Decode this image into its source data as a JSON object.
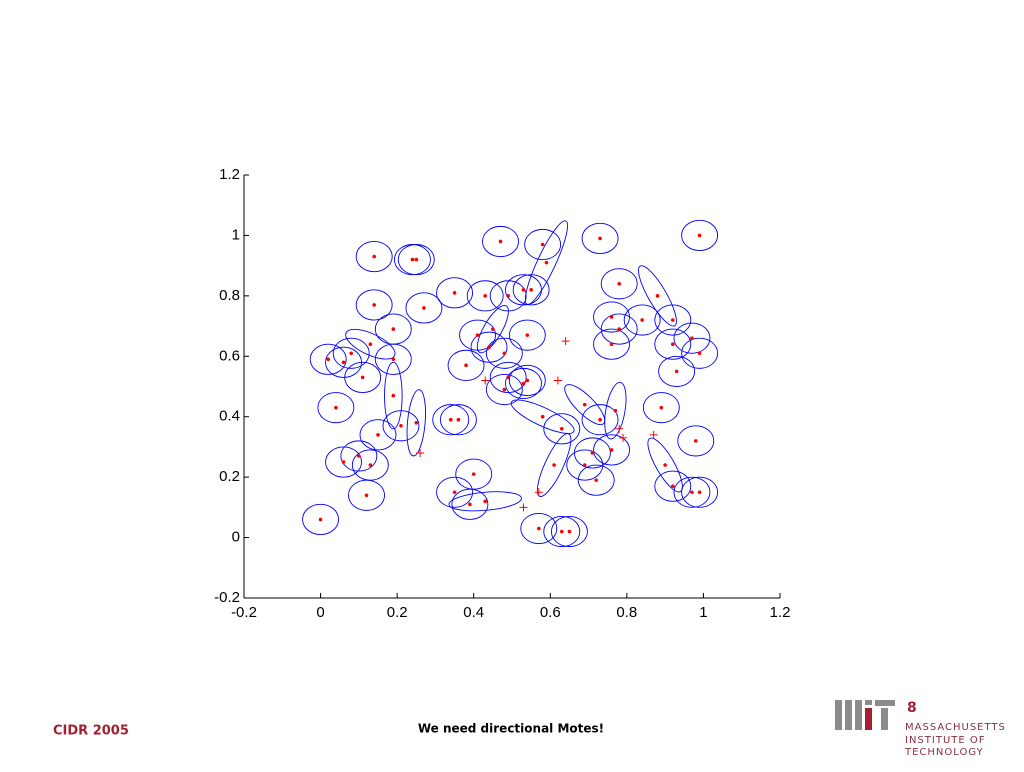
{
  "chart_data": {
    "type": "scatter",
    "xlim": [
      -0.2,
      1.2
    ],
    "ylim": [
      -0.2,
      1.2
    ],
    "xticks": [
      -0.2,
      0,
      0.2,
      0.4,
      0.6,
      0.8,
      1,
      1.2
    ],
    "yticks": [
      -0.2,
      0,
      0.2,
      0.4,
      0.6,
      0.8,
      1,
      1.2
    ],
    "points": {
      "color": "#ff0000",
      "x": [
        0.0,
        0.04,
        0.02,
        0.06,
        0.08,
        0.11,
        0.13,
        0.14,
        0.14,
        0.19,
        0.19,
        0.19,
        0.21,
        0.25,
        0.15,
        0.1,
        0.13,
        0.06,
        0.12,
        0.24,
        0.25,
        0.27,
        0.35,
        0.38,
        0.34,
        0.36,
        0.4,
        0.35,
        0.39,
        0.43,
        0.47,
        0.43,
        0.49,
        0.53,
        0.55,
        0.58,
        0.59,
        0.41,
        0.44,
        0.45,
        0.48,
        0.54,
        0.48,
        0.53,
        0.54,
        0.49,
        0.58,
        0.63,
        0.61,
        0.57,
        0.63,
        0.65,
        0.73,
        0.78,
        0.76,
        0.78,
        0.76,
        0.84,
        0.88,
        0.92,
        0.92,
        0.97,
        0.99,
        0.93,
        0.89,
        0.99,
        0.69,
        0.73,
        0.77,
        0.76,
        0.71,
        0.69,
        0.72,
        0.9,
        0.92,
        0.98,
        0.97,
        0.99
      ],
      "y": [
        0.06,
        0.43,
        0.59,
        0.58,
        0.61,
        0.53,
        0.64,
        0.93,
        0.77,
        0.69,
        0.59,
        0.47,
        0.37,
        0.38,
        0.34,
        0.27,
        0.24,
        0.25,
        0.14,
        0.92,
        0.92,
        0.76,
        0.81,
        0.57,
        0.39,
        0.39,
        0.21,
        0.15,
        0.11,
        0.12,
        0.98,
        0.8,
        0.8,
        0.82,
        0.82,
        0.97,
        0.91,
        0.67,
        0.63,
        0.69,
        0.61,
        0.67,
        0.49,
        0.51,
        0.52,
        0.53,
        0.4,
        0.36,
        0.24,
        0.03,
        0.02,
        0.02,
        0.99,
        0.84,
        0.73,
        0.69,
        0.64,
        0.72,
        0.8,
        0.72,
        0.64,
        0.66,
        0.61,
        0.55,
        0.43,
        1.0,
        0.44,
        0.39,
        0.42,
        0.29,
        0.28,
        0.24,
        0.19,
        0.24,
        0.17,
        0.32,
        0.15,
        0.15
      ]
    },
    "ellipses": {
      "color": "#0000ff",
      "rx": [
        0.047,
        0.047,
        0.047,
        0.047,
        0.047,
        0.047,
        0.07,
        0.047,
        0.047,
        0.047,
        0.047,
        0.023,
        0.047,
        0.023,
        0.047,
        0.047,
        0.047,
        0.047,
        0.047,
        0.047,
        0.047,
        0.047,
        0.047,
        0.047,
        0.047,
        0.047,
        0.047,
        0.047,
        0.047,
        0.095,
        0.047,
        0.047,
        0.047,
        0.047,
        0.047,
        0.047,
        0.12,
        0.047,
        0.047,
        0.07,
        0.047,
        0.047,
        0.047,
        0.047,
        0.047,
        0.047,
        0.09,
        0.047,
        0.09,
        0.047,
        0.047,
        0.047,
        0.047,
        0.047,
        0.047,
        0.047,
        0.047,
        0.047,
        0.09,
        0.047,
        0.047,
        0.047,
        0.047,
        0.047,
        0.047,
        0.047,
        0.07,
        0.047,
        0.025,
        0.047,
        0.047,
        0.047,
        0.047,
        0.08,
        0.047,
        0.047,
        0.047,
        0.047
      ],
      "ry": [
        0.05,
        0.05,
        0.05,
        0.05,
        0.05,
        0.05,
        0.035,
        0.05,
        0.05,
        0.05,
        0.05,
        0.11,
        0.05,
        0.11,
        0.05,
        0.05,
        0.05,
        0.05,
        0.05,
        0.05,
        0.05,
        0.05,
        0.05,
        0.05,
        0.05,
        0.05,
        0.05,
        0.05,
        0.05,
        0.03,
        0.05,
        0.05,
        0.05,
        0.05,
        0.05,
        0.05,
        0.03,
        0.05,
        0.05,
        0.03,
        0.05,
        0.05,
        0.05,
        0.05,
        0.05,
        0.05,
        0.03,
        0.05,
        0.03,
        0.05,
        0.05,
        0.05,
        0.05,
        0.05,
        0.05,
        0.05,
        0.05,
        0.05,
        0.03,
        0.05,
        0.05,
        0.05,
        0.05,
        0.05,
        0.05,
        0.05,
        0.03,
        0.05,
        0.095,
        0.05,
        0.05,
        0.05,
        0.05,
        0.03,
        0.05,
        0.05,
        0.05,
        0.05
      ],
      "angle": [
        0,
        0,
        0,
        0,
        0,
        0,
        25,
        0,
        0,
        0,
        0,
        0,
        0,
        5,
        0,
        0,
        0,
        0,
        0,
        0,
        0,
        0,
        0,
        0,
        0,
        0,
        0,
        0,
        0,
        -5,
        0,
        0,
        0,
        0,
        0,
        0,
        -65,
        0,
        0,
        -60,
        0,
        0,
        0,
        0,
        0,
        0,
        25,
        0,
        -65,
        0,
        0,
        0,
        0,
        0,
        0,
        0,
        0,
        0,
        60,
        0,
        0,
        0,
        0,
        0,
        0,
        0,
        45,
        0,
        10,
        0,
        0,
        0,
        0,
        60,
        0,
        0,
        0,
        0
      ]
    },
    "crosses": {
      "color": "#ff0000",
      "x": [
        0.64,
        0.62,
        0.26,
        0.53,
        0.57,
        0.78,
        0.79,
        0.87,
        0.43
      ],
      "y": [
        0.65,
        0.52,
        0.28,
        0.1,
        0.15,
        0.36,
        0.33,
        0.34,
        0.52
      ]
    }
  },
  "slide": {
    "footer_left": "CIDR 2005",
    "caption": "We need directional Motes!",
    "page_number": 8,
    "logo_text": [
      "MASSACHUSETTS",
      "INSTITUTE OF",
      "TECHNOLOGY"
    ]
  }
}
